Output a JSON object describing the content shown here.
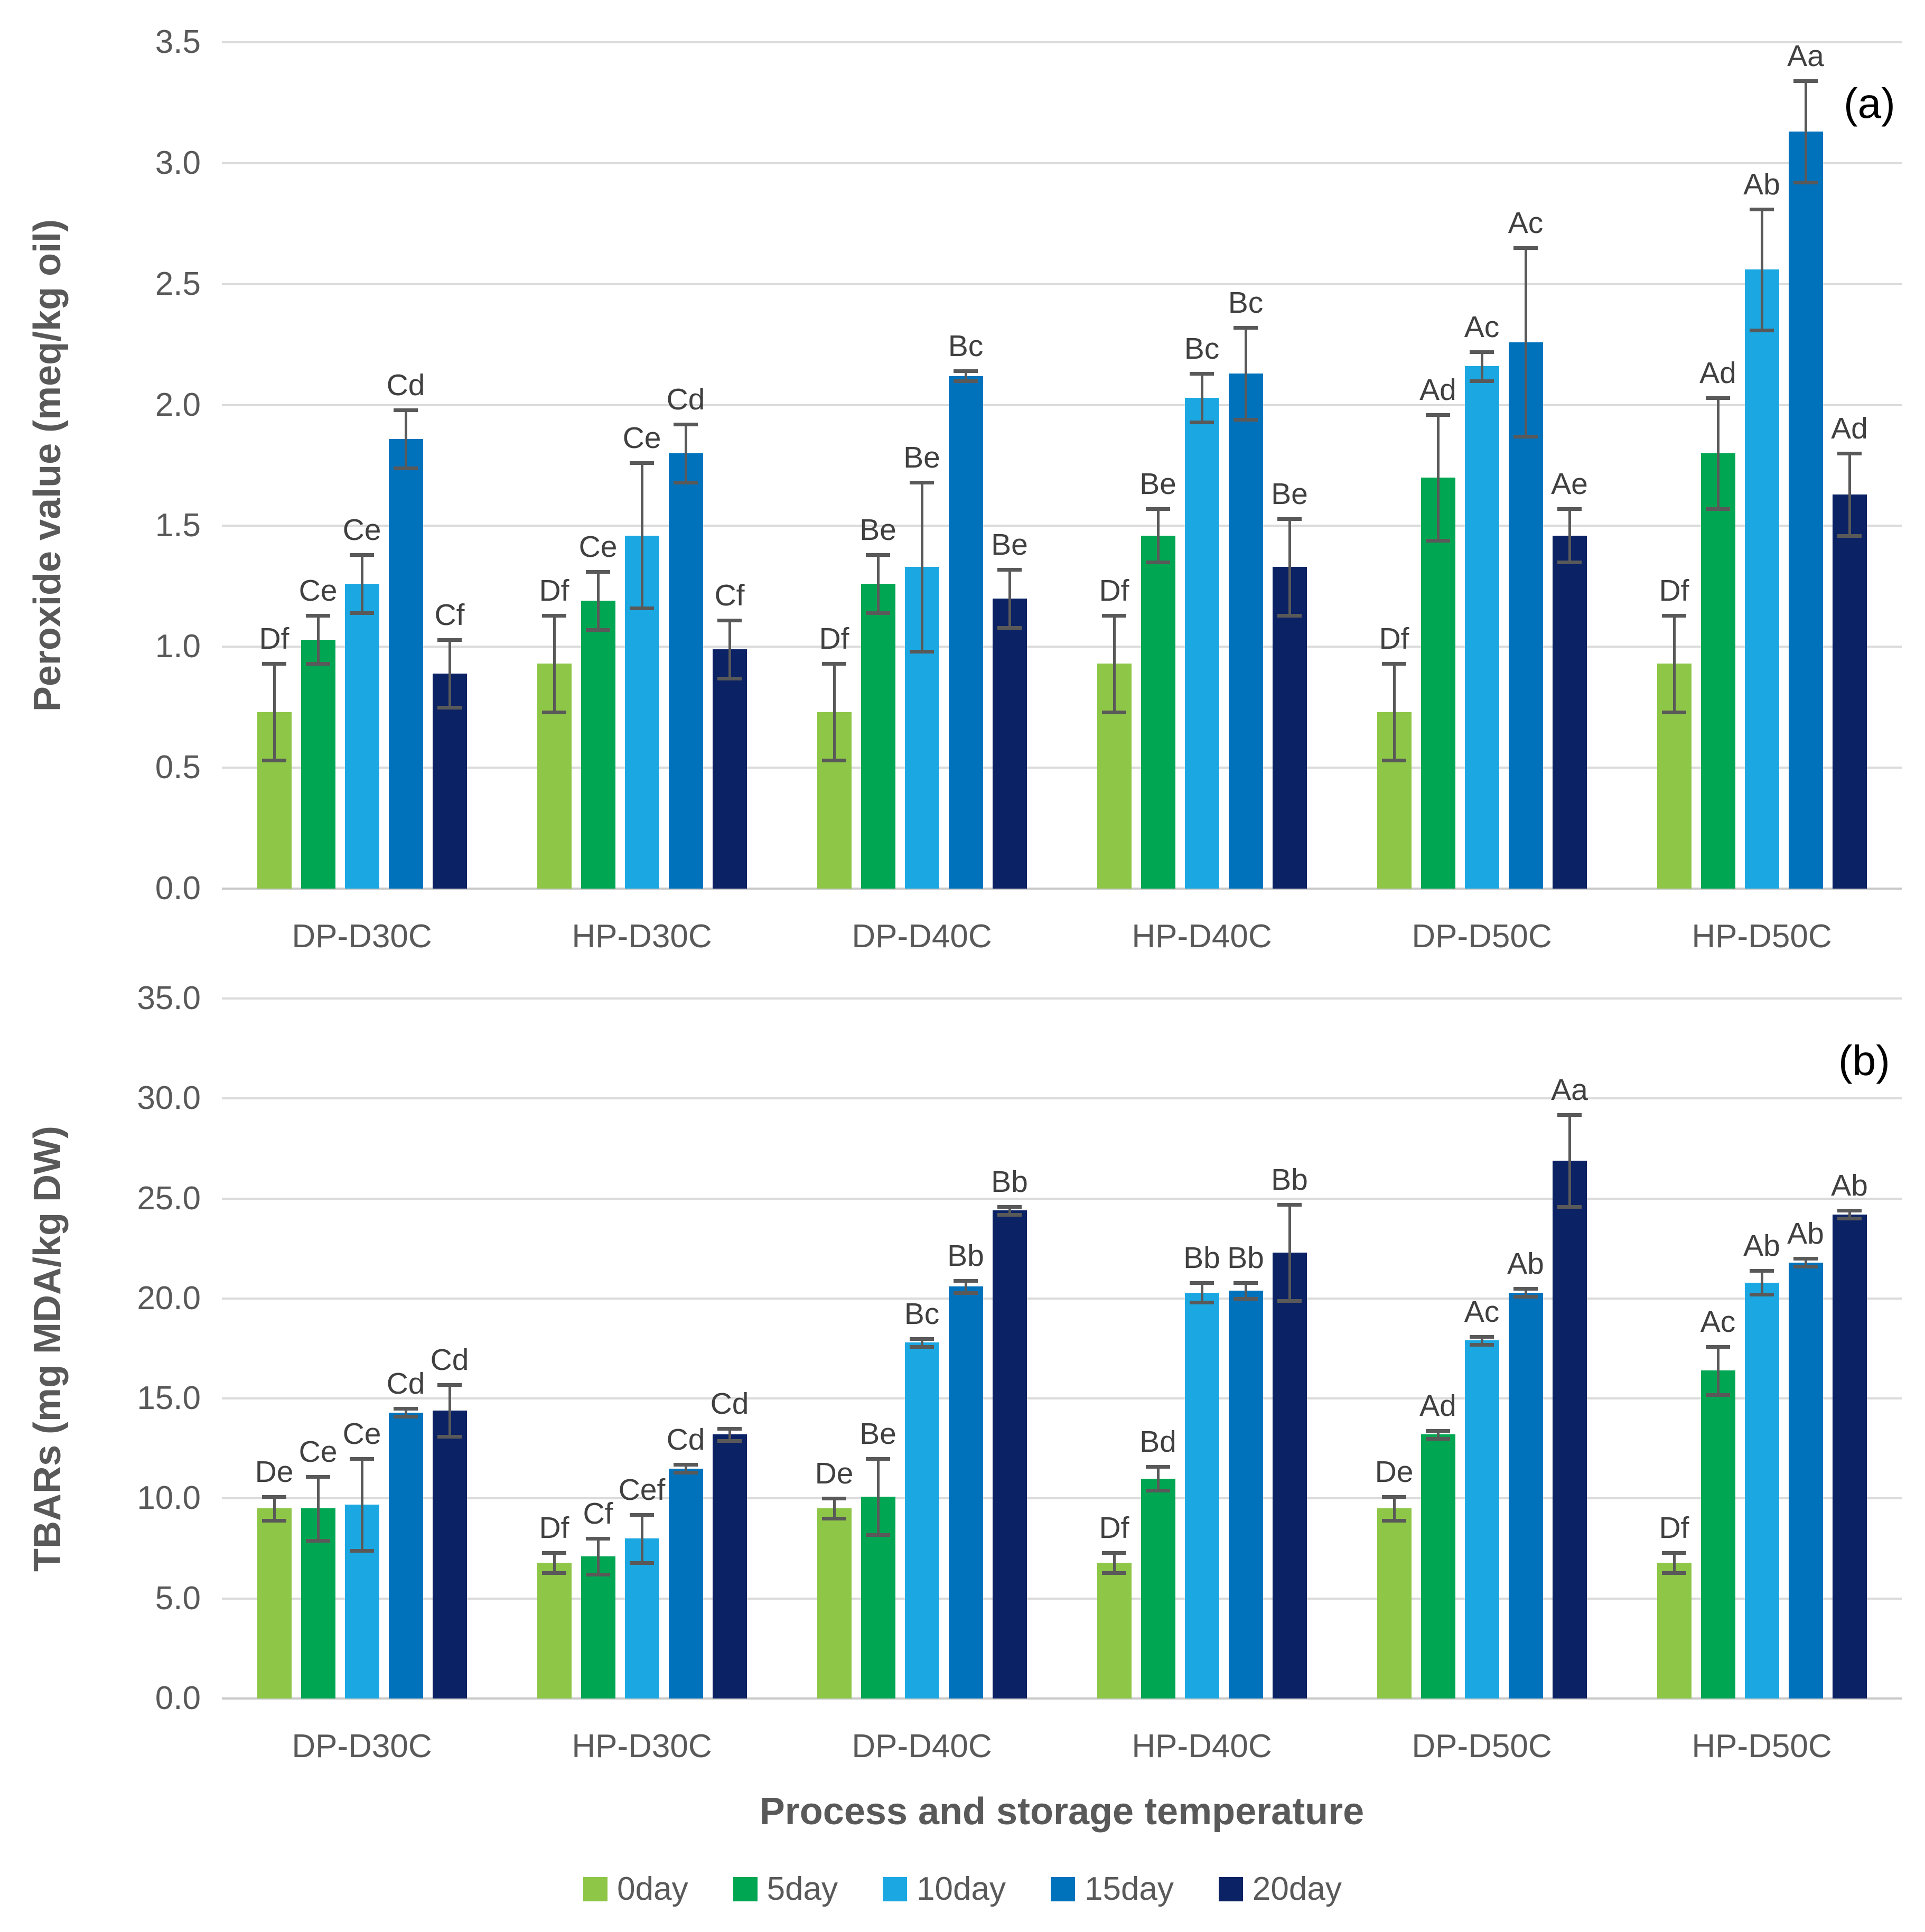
{
  "figure": {
    "xlabel": "Process and storage temperature",
    "panel_a_letter": "(a)",
    "panel_b_letter": "(b)"
  },
  "palette": {
    "day0": "#8EC648",
    "day5": "#00A651",
    "day10": "#1BA8E2",
    "day15": "#0072BC",
    "day20": "#0B2265",
    "gridline": "#dbdbdb",
    "error_bar": "#595959",
    "axis_text": "#595959",
    "letter_text": "#404040"
  },
  "legend": {
    "items": [
      {
        "label": "0day",
        "color": "#8EC648"
      },
      {
        "label": "5day",
        "color": "#00A651"
      },
      {
        "label": "10day",
        "color": "#1BA8E2"
      },
      {
        "label": "15day",
        "color": "#0072BC"
      },
      {
        "label": "20day",
        "color": "#0B2265"
      }
    ]
  },
  "chart_data": [
    {
      "type": "bar",
      "panel": "a",
      "ylabel": "Peroxide value (meq/kg oil)",
      "xlabel": "Process and storage temperature",
      "ylim": [
        0,
        3.5
      ],
      "ytick_step": 0.5,
      "grid": true,
      "legend_position": "bottom",
      "categories": [
        "DP-D30C",
        "HP-D30C",
        "DP-D40C",
        "HP-D40C",
        "DP-D50C",
        "HP-D50C"
      ],
      "series": [
        {
          "name": "0day",
          "color": "#8EC648",
          "values": [
            0.73,
            0.93,
            0.73,
            0.93,
            0.73,
            0.93
          ],
          "errors": [
            0.2,
            0.2,
            0.2,
            0.2,
            0.2,
            0.2
          ],
          "letters": [
            "Df",
            "Df",
            "Df",
            "Df",
            "Df",
            "Df"
          ]
        },
        {
          "name": "5day",
          "color": "#00A651",
          "values": [
            1.03,
            1.19,
            1.26,
            1.46,
            1.7,
            1.8
          ],
          "errors": [
            0.1,
            0.12,
            0.12,
            0.11,
            0.26,
            0.23
          ],
          "letters": [
            "Ce",
            "Ce",
            "Be",
            "Be",
            "Ad",
            "Ad"
          ]
        },
        {
          "name": "10day",
          "color": "#1BA8E2",
          "values": [
            1.26,
            1.46,
            1.33,
            2.03,
            2.16,
            2.56
          ],
          "errors": [
            0.12,
            0.3,
            0.35,
            0.1,
            0.06,
            0.25
          ],
          "letters": [
            "Ce",
            "Ce",
            "Be",
            "Bc",
            "Ac",
            "Ab"
          ]
        },
        {
          "name": "15day",
          "color": "#0072BC",
          "values": [
            1.86,
            1.8,
            2.12,
            2.13,
            2.26,
            3.13
          ],
          "errors": [
            0.12,
            0.12,
            0.02,
            0.19,
            0.39,
            0.21
          ],
          "letters": [
            "Cd",
            "Cd",
            "Bc",
            "Bc",
            "Ac",
            "Aa"
          ]
        },
        {
          "name": "20day",
          "color": "#0B2265",
          "values": [
            0.89,
            0.99,
            1.2,
            1.33,
            1.46,
            1.63
          ],
          "errors": [
            0.14,
            0.12,
            0.12,
            0.2,
            0.11,
            0.17
          ],
          "letters": [
            "Cf",
            "Cf",
            "Be",
            "Be",
            "Ae",
            "Ad"
          ]
        }
      ]
    },
    {
      "type": "bar",
      "panel": "b",
      "ylabel": "TBARs (mg MDA/kg DW)",
      "xlabel": "Process and storage temperature",
      "ylim": [
        0,
        35
      ],
      "ytick_step": 5,
      "grid": true,
      "legend_position": "bottom",
      "categories": [
        "DP-D30C",
        "HP-D30C",
        "DP-D40C",
        "HP-D40C",
        "DP-D50C",
        "HP-D50C"
      ],
      "series": [
        {
          "name": "0day",
          "color": "#8EC648",
          "values": [
            9.5,
            6.8,
            9.5,
            6.8,
            9.5,
            6.8
          ],
          "errors": [
            0.6,
            0.5,
            0.5,
            0.5,
            0.6,
            0.5
          ],
          "letters": [
            "De",
            "Df",
            "De",
            "Df",
            "De",
            "Df"
          ]
        },
        {
          "name": "5day",
          "color": "#00A651",
          "values": [
            9.5,
            7.1,
            10.1,
            11.0,
            13.2,
            16.4
          ],
          "errors": [
            1.6,
            0.9,
            1.9,
            0.6,
            0.2,
            1.2
          ],
          "letters": [
            "Ce",
            "Cf",
            "Be",
            "Bd",
            "Ad",
            "Ac"
          ]
        },
        {
          "name": "10day",
          "color": "#1BA8E2",
          "values": [
            9.7,
            8.0,
            17.8,
            20.3,
            17.9,
            20.8
          ],
          "errors": [
            2.3,
            1.2,
            0.2,
            0.5,
            0.2,
            0.6
          ],
          "letters": [
            "Ce",
            "Cef",
            "Bc",
            "Bb",
            "Ac",
            "Ab"
          ]
        },
        {
          "name": "15day",
          "color": "#0072BC",
          "values": [
            14.3,
            11.5,
            20.6,
            20.4,
            20.3,
            21.8
          ],
          "errors": [
            0.2,
            0.2,
            0.3,
            0.4,
            0.2,
            0.2
          ],
          "letters": [
            "Cd",
            "Cd",
            "Bb",
            "Bb",
            "Ab",
            "Ab"
          ]
        },
        {
          "name": "20day",
          "color": "#0B2265",
          "values": [
            14.4,
            13.2,
            24.4,
            22.3,
            26.9,
            24.2
          ],
          "errors": [
            1.3,
            0.3,
            0.2,
            2.4,
            2.3,
            0.2
          ],
          "letters": [
            "Cd",
            "Cd",
            "Bb",
            "Bb",
            "Aa",
            "Ab"
          ]
        }
      ]
    }
  ]
}
